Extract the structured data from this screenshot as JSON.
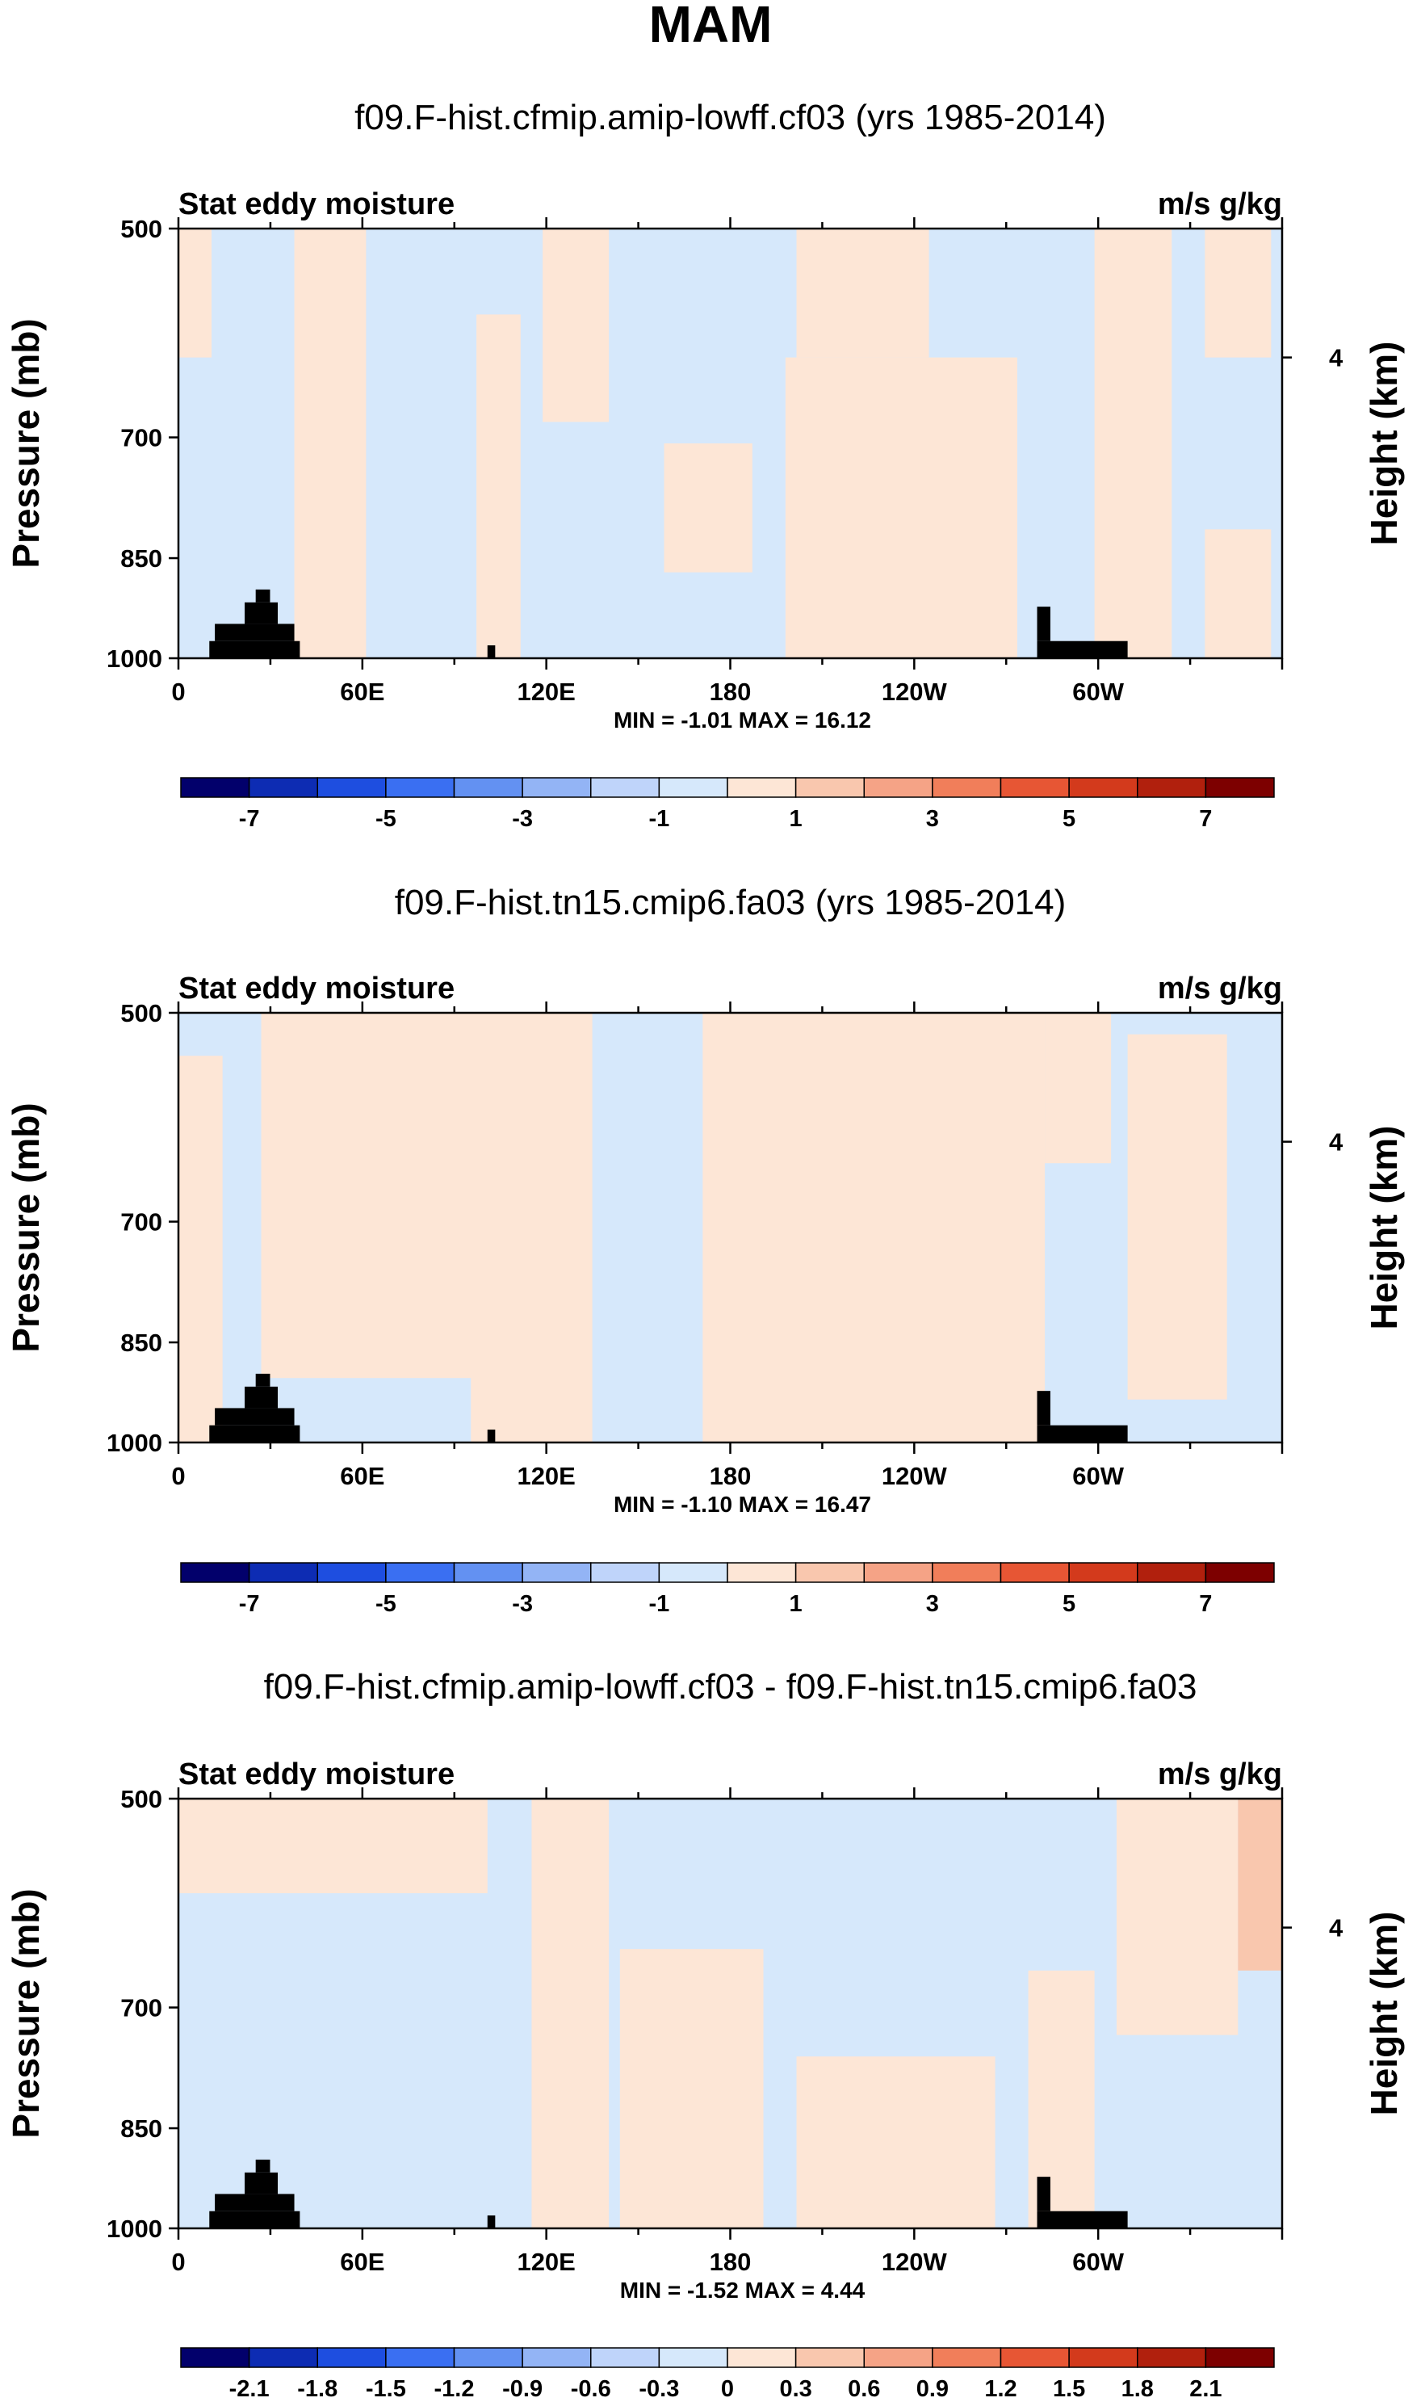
{
  "page": {
    "title": "MAM"
  },
  "colors": {
    "lightBlue": "#d6e8fb",
    "lightPeach": "#fde6d6",
    "peach": "#f9c7ae",
    "landMask": "#000000",
    "full_palette": [
      "#02006b",
      "#0d2cb3",
      "#1e4ee0",
      "#3a6ff2",
      "#6391f2",
      "#93b4f5",
      "#bfd4fa",
      "#d6e8fb",
      "#fde6d6",
      "#f9c7ae",
      "#f5a386",
      "#f17e5a",
      "#e75634",
      "#d33a1c",
      "#b1200d",
      "#7d0000"
    ]
  },
  "chart_data": [
    {
      "type": "heatmap",
      "title": "f09.F-hist.cfmip.amip-lowff.cf03 (yrs 1985-2014)",
      "left_label": "Stat eddy moisture",
      "right_label": "m/s g/kg",
      "ylabel": "Pressure (mb)",
      "y2label": "Height (km)",
      "yticks": [
        "500",
        "700",
        "850",
        "1000"
      ],
      "y2ticks": [
        "4"
      ],
      "xticks": [
        "0",
        "60E",
        "120E",
        "180",
        "120W",
        "60W"
      ],
      "ylim": [
        1000,
        500
      ],
      "xlim": [
        0,
        360
      ],
      "stats": "MIN =  -1.01  MAX =  16.12",
      "colorbar": {
        "levels": [
          -8,
          -7,
          -6,
          -5,
          -4,
          -3,
          -2,
          -1,
          0,
          1,
          2,
          3,
          4,
          5,
          6,
          7,
          8
        ],
        "labels": [
          "-7",
          "-5",
          "-3",
          "-1",
          "1",
          "3",
          "5",
          "7"
        ]
      }
    },
    {
      "type": "heatmap",
      "title": "f09.F-hist.tn15.cmip6.fa03 (yrs 1985-2014)",
      "left_label": "Stat eddy moisture",
      "right_label": "m/s g/kg",
      "ylabel": "Pressure (mb)",
      "y2label": "Height (km)",
      "yticks": [
        "500",
        "700",
        "850",
        "1000"
      ],
      "y2ticks": [
        "4"
      ],
      "xticks": [
        "0",
        "60E",
        "120E",
        "180",
        "120W",
        "60W"
      ],
      "ylim": [
        1000,
        500
      ],
      "xlim": [
        0,
        360
      ],
      "stats": "MIN =  -1.10  MAX =  16.47",
      "colorbar": {
        "levels": [
          -8,
          -7,
          -6,
          -5,
          -4,
          -3,
          -2,
          -1,
          0,
          1,
          2,
          3,
          4,
          5,
          6,
          7,
          8
        ],
        "labels": [
          "-7",
          "-5",
          "-3",
          "-1",
          "1",
          "3",
          "5",
          "7"
        ]
      }
    },
    {
      "type": "heatmap",
      "title": "f09.F-hist.cfmip.amip-lowff.cf03 - f09.F-hist.tn15.cmip6.fa03",
      "left_label": "Stat eddy moisture",
      "right_label": "m/s g/kg",
      "ylabel": "Pressure (mb)",
      "y2label": "Height (km)",
      "yticks": [
        "500",
        "700",
        "850",
        "1000"
      ],
      "y2ticks": [
        "4"
      ],
      "xticks": [
        "0",
        "60E",
        "120E",
        "180",
        "120W",
        "60W"
      ],
      "ylim": [
        1000,
        500
      ],
      "xlim": [
        0,
        360
      ],
      "stats": "MIN =  -1.52  MAX =   4.44",
      "colorbar": {
        "levels": [
          -2.4,
          -2.1,
          -1.8,
          -1.5,
          -1.2,
          -0.9,
          -0.6,
          -0.3,
          0,
          0.3,
          0.6,
          0.9,
          1.2,
          1.5,
          1.8,
          2.1,
          2.4
        ],
        "labels": [
          "-2.1",
          "-1.8",
          "-1.5",
          "-1.2",
          "-0.9",
          "-0.6",
          "-0.3",
          "0",
          "0.3",
          "0.6",
          "0.9",
          "1.2",
          "1.5",
          "1.8",
          "2.1"
        ]
      }
    }
  ]
}
